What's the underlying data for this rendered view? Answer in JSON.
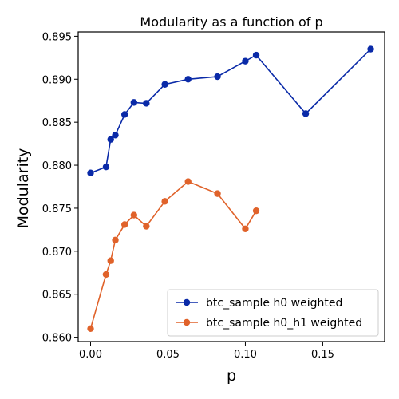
{
  "chart_data": {
    "type": "line",
    "title": "Modularity as a function of p",
    "xlabel": "p",
    "ylabel": "Modularity",
    "xlim": [
      -0.008,
      0.19
    ],
    "ylim": [
      0.8595,
      0.8955
    ],
    "xticks": [
      0.0,
      0.05,
      0.1,
      0.15
    ],
    "xtick_labels": [
      "0.00",
      "0.05",
      "0.10",
      "0.15"
    ],
    "yticks": [
      0.86,
      0.865,
      0.87,
      0.875,
      0.88,
      0.885,
      0.89,
      0.895
    ],
    "ytick_labels": [
      "0.860",
      "0.865",
      "0.870",
      "0.875",
      "0.880",
      "0.885",
      "0.890",
      "0.895"
    ],
    "grid": false,
    "legend_position": "lower-right",
    "series": [
      {
        "name": "btc_sample h0 weighted",
        "color": "#0a2aa8",
        "x": [
          0.0,
          0.01,
          0.013,
          0.016,
          0.022,
          0.028,
          0.036,
          0.048,
          0.063,
          0.082,
          0.1,
          0.107,
          0.139,
          0.181
        ],
        "y": [
          0.8791,
          0.8798,
          0.883,
          0.8835,
          0.8859,
          0.8873,
          0.8872,
          0.8894,
          0.89,
          0.8903,
          0.8921,
          0.8928,
          0.886,
          0.8935
        ]
      },
      {
        "name": "btc_sample h0_h1 weighted",
        "color": "#e0622a",
        "x": [
          0.0,
          0.01,
          0.013,
          0.016,
          0.022,
          0.028,
          0.036,
          0.048,
          0.063,
          0.082,
          0.1,
          0.107
        ],
        "y": [
          0.861,
          0.8673,
          0.8689,
          0.8713,
          0.8731,
          0.8742,
          0.8729,
          0.8758,
          0.8781,
          0.8767,
          0.8726,
          0.8747
        ]
      }
    ]
  }
}
